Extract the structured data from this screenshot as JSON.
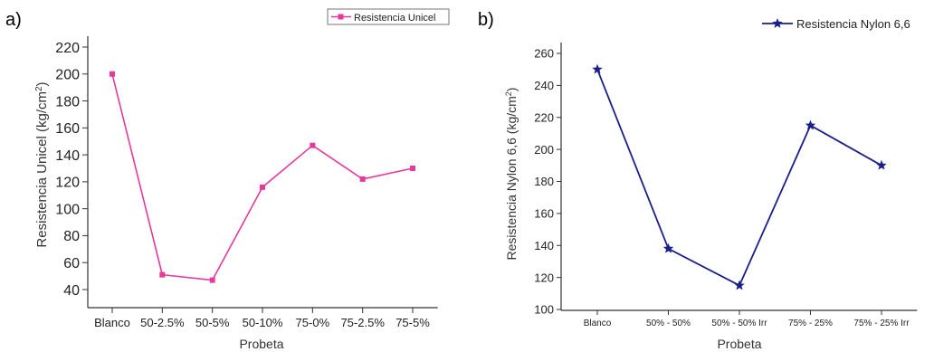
{
  "chart_data": [
    {
      "type": "line",
      "panel_label": "a)",
      "categories": [
        "Blanco",
        "50-2.5%",
        "50-5%",
        "50-10%",
        "75-0%",
        "75-2.5%",
        "75-5%"
      ],
      "series": [
        {
          "name": "Resistencia Unicel",
          "values": [
            200,
            51,
            47,
            116,
            147,
            122,
            130
          ],
          "color": "#e6399b",
          "marker": "square"
        }
      ],
      "xlabel": "Probeta",
      "ylabel": "Resistencia Unicel (kg/cm",
      "ylabel_sup": "2",
      "ylabel_close": ")",
      "ylim": [
        40,
        220
      ],
      "yticks": [
        40,
        60,
        80,
        100,
        120,
        140,
        160,
        180,
        200,
        220
      ],
      "grid": false,
      "legend_position": "top-right"
    },
    {
      "type": "line",
      "panel_label": "b)",
      "categories": [
        "Blanco",
        "50% - 50%",
        "50% - 50% Irr",
        "75% - 25%",
        "75% - 25% Irr"
      ],
      "series": [
        {
          "name": "Resistencia Nylon 6,6",
          "values": [
            250,
            138,
            115,
            215,
            190
          ],
          "color": "#1a1f8c",
          "marker": "star"
        }
      ],
      "xlabel": "Probeta",
      "ylabel": "Resistencia Nylon 6,6 (kg/cm",
      "ylabel_sup": "2",
      "ylabel_close": ")",
      "ylim": [
        100,
        260
      ],
      "yticks": [
        100,
        120,
        140,
        160,
        180,
        200,
        220,
        240,
        260
      ],
      "grid": false,
      "legend_position": "top-right"
    }
  ]
}
